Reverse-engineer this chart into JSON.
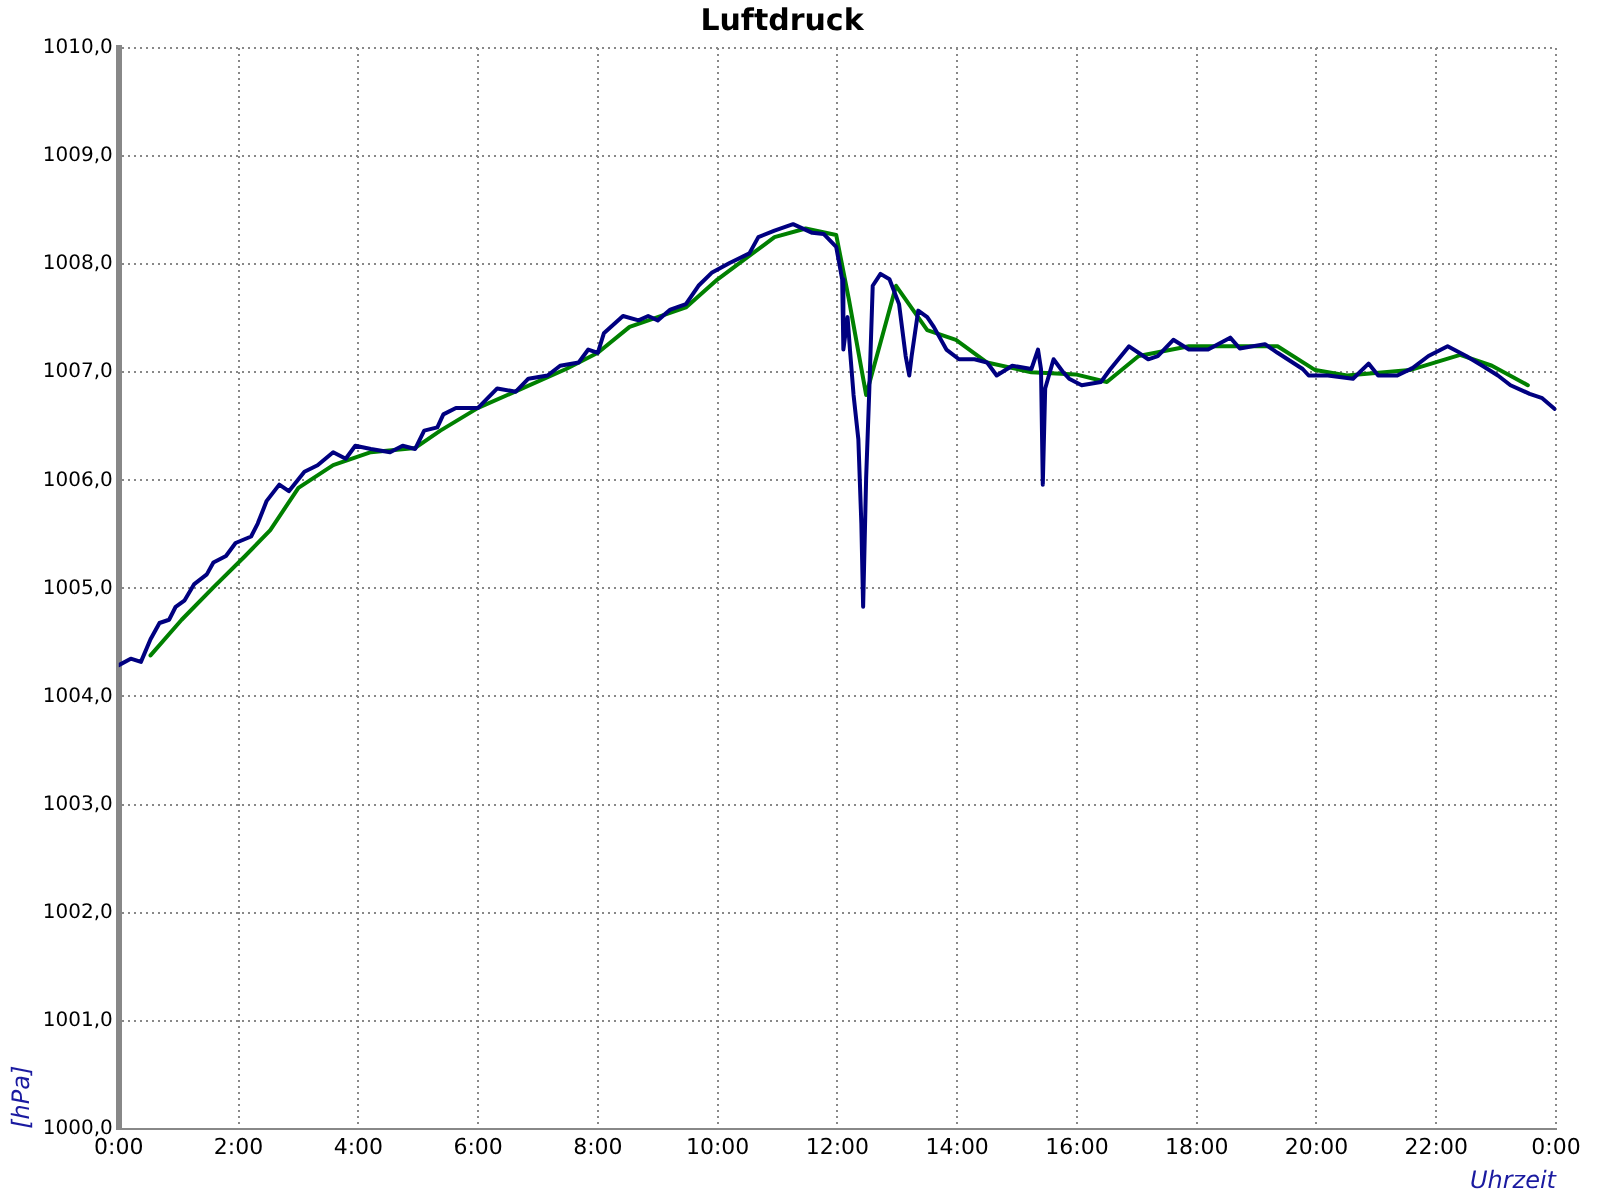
{
  "chart_data": {
    "type": "line",
    "title": "Luftdruck",
    "xlabel": "Uhrzeit",
    "ylabel": "[hPa]",
    "xlim": [
      0,
      24
    ],
    "xticks": [
      {
        "value": 0,
        "label": "0:00"
      },
      {
        "value": 2,
        "label": "2:00"
      },
      {
        "value": 4,
        "label": "4:00"
      },
      {
        "value": 6,
        "label": "6:00"
      },
      {
        "value": 8,
        "label": "8:00"
      },
      {
        "value": 10,
        "label": "10:00"
      },
      {
        "value": 12,
        "label": "12:00"
      },
      {
        "value": 14,
        "label": "14:00"
      },
      {
        "value": 16,
        "label": "16:00"
      },
      {
        "value": 18,
        "label": "18:00"
      },
      {
        "value": 20,
        "label": "20:00"
      },
      {
        "value": 22,
        "label": "22:00"
      },
      {
        "value": 24,
        "label": "0:00"
      }
    ],
    "ylim": [
      1000,
      1010
    ],
    "yticks": [
      {
        "value": 1000,
        "label": "1000,0"
      },
      {
        "value": 1001,
        "label": "1001,0"
      },
      {
        "value": 1002,
        "label": "1002,0"
      },
      {
        "value": 1003,
        "label": "1003,0"
      },
      {
        "value": 1004,
        "label": "1004,0"
      },
      {
        "value": 1005,
        "label": "1005,0"
      },
      {
        "value": 1006,
        "label": "1006,0"
      },
      {
        "value": 1007,
        "label": "1007,0"
      },
      {
        "value": 1008,
        "label": "1008,0"
      },
      {
        "value": 1009,
        "label": "1009,0"
      },
      {
        "value": 1010,
        "label": "1010,0"
      }
    ],
    "grid": true,
    "legend": false,
    "marker": "none",
    "line_style": "solid",
    "series": [
      {
        "color": "#000080",
        "x": [
          0,
          0.2,
          0.37,
          0.53,
          0.68,
          0.84,
          0.95,
          1.1,
          1.26,
          1.47,
          1.58,
          1.79,
          1.95,
          2.21,
          2.32,
          2.47,
          2.68,
          2.84,
          3.1,
          3.32,
          3.58,
          3.79,
          3.95,
          4.21,
          4.53,
          4.74,
          4.95,
          5.1,
          5.32,
          5.42,
          5.63,
          6.0,
          6.32,
          6.63,
          6.84,
          7.16,
          7.37,
          7.68,
          7.84,
          8.0,
          8.1,
          8.42,
          8.68,
          8.84,
          9.0,
          9.21,
          9.47,
          9.68,
          9.9,
          10.2,
          10.53,
          10.68,
          10.95,
          11.26,
          11.58,
          11.77,
          11.98,
          12.08,
          12.1,
          12.17,
          12.21,
          12.27,
          12.35,
          12.4,
          12.43,
          12.48,
          12.53,
          12.59,
          12.72,
          12.87,
          13.03,
          13.14,
          13.2,
          13.24,
          13.35,
          13.5,
          13.61,
          13.82,
          14.03,
          14.29,
          14.5,
          14.66,
          14.92,
          15.24,
          15.35,
          15.4,
          15.43,
          15.47,
          15.61,
          15.77,
          15.87,
          16.08,
          16.4,
          16.56,
          16.87,
          17.19,
          17.35,
          17.61,
          17.87,
          18.19,
          18.56,
          18.72,
          19.14,
          19.35,
          19.77,
          19.87,
          20.19,
          20.61,
          20.87,
          21.03,
          21.35,
          21.61,
          21.87,
          22.19,
          22.5,
          22.77,
          23.03,
          23.24,
          23.56,
          23.77,
          23.98
        ],
        "values": [
          1004.29,
          1004.35,
          1004.32,
          1004.53,
          1004.68,
          1004.71,
          1004.83,
          1004.89,
          1005.04,
          1005.13,
          1005.24,
          1005.3,
          1005.42,
          1005.48,
          1005.6,
          1005.81,
          1005.96,
          1005.9,
          1006.08,
          1006.14,
          1006.26,
          1006.2,
          1006.32,
          1006.29,
          1006.26,
          1006.32,
          1006.29,
          1006.46,
          1006.49,
          1006.61,
          1006.67,
          1006.67,
          1006.85,
          1006.82,
          1006.94,
          1006.97,
          1007.06,
          1007.09,
          1007.21,
          1007.18,
          1007.36,
          1007.52,
          1007.48,
          1007.52,
          1007.48,
          1007.58,
          1007.63,
          1007.8,
          1007.92,
          1008.01,
          1008.1,
          1008.25,
          1008.31,
          1008.37,
          1008.29,
          1008.28,
          1008.16,
          1007.86,
          1007.21,
          1007.51,
          1007.21,
          1006.79,
          1006.38,
          1005.6,
          1004.83,
          1006.02,
          1006.79,
          1007.8,
          1007.91,
          1007.86,
          1007.63,
          1007.15,
          1006.97,
          1007.15,
          1007.57,
          1007.51,
          1007.42,
          1007.21,
          1007.12,
          1007.12,
          1007.09,
          1006.97,
          1007.06,
          1007.03,
          1007.21,
          1007.03,
          1005.96,
          1006.85,
          1007.12,
          1007.0,
          1006.94,
          1006.88,
          1006.91,
          1007.03,
          1007.24,
          1007.12,
          1007.15,
          1007.3,
          1007.21,
          1007.21,
          1007.32,
          1007.22,
          1007.26,
          1007.18,
          1007.03,
          1006.97,
          1006.97,
          1006.94,
          1007.08,
          1006.97,
          1006.97,
          1007.04,
          1007.15,
          1007.24,
          1007.15,
          1007.06,
          1006.97,
          1006.88,
          1006.8,
          1006.76,
          1006.66
        ]
      },
      {
        "color": "#008000",
        "x": [
          0.53,
          1.05,
          1.58,
          2.11,
          2.53,
          3.0,
          3.58,
          4.21,
          4.95,
          5.37,
          6.0,
          6.74,
          7.47,
          8.0,
          8.53,
          9.47,
          10.0,
          10.95,
          11.47,
          11.98,
          12.19,
          12.48,
          12.98,
          13.5,
          13.98,
          14.5,
          15.24,
          15.98,
          16.5,
          17.03,
          17.87,
          19.35,
          19.98,
          20.51,
          21.56,
          22.4,
          22.93,
          23.53
        ],
        "values": [
          1004.38,
          1004.71,
          1005.01,
          1005.3,
          1005.54,
          1005.93,
          1006.14,
          1006.26,
          1006.3,
          1006.46,
          1006.67,
          1006.85,
          1007.03,
          1007.18,
          1007.42,
          1007.6,
          1007.86,
          1008.25,
          1008.33,
          1008.27,
          1007.68,
          1006.79,
          1007.8,
          1007.39,
          1007.3,
          1007.09,
          1007.0,
          1006.98,
          1006.91,
          1007.15,
          1007.24,
          1007.24,
          1007.02,
          1006.97,
          1007.02,
          1007.16,
          1007.06,
          1006.88
        ]
      }
    ]
  }
}
